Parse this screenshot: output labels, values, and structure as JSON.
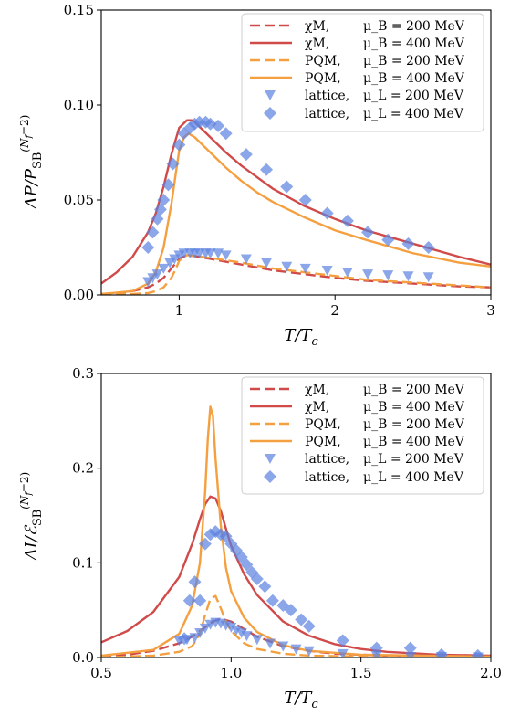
{
  "colors": {
    "chiM": "#d04a4a",
    "PQM": "#f5a040",
    "lattice": "#5b82e0"
  },
  "chart_data": [
    {
      "type": "line",
      "ylabel": "ΔP/P_SB^(N_f=2)",
      "xlabel": "T/T_c",
      "xlim": [
        0.5,
        3.0
      ],
      "ylim": [
        0.0,
        0.15
      ],
      "xticks": [
        "1",
        "2",
        "3"
      ],
      "xtick_values": [
        1,
        2,
        3
      ],
      "yticks": [
        "0.00",
        "0.05",
        "0.10",
        "0.15"
      ],
      "ytick_values": [
        0.0,
        0.05,
        0.1,
        0.15
      ],
      "legend_position": "top-right",
      "legend": [
        {
          "model": "χM,",
          "mu": "μ_B = 200 MeV"
        },
        {
          "model": "χM,",
          "mu": "μ_B = 400 MeV"
        },
        {
          "model": "PQM,",
          "mu": "μ_B = 200 MeV"
        },
        {
          "model": "PQM,",
          "mu": "μ_B = 400 MeV"
        },
        {
          "model": "lattice,",
          "mu": "μ_L = 200 MeV"
        },
        {
          "model": "lattice,",
          "mu": "μ_L = 400 MeV"
        }
      ],
      "series": [
        {
          "name": "χM, μ_B = 200 MeV",
          "style": "dashed",
          "color": "chiM",
          "x": [
            0.5,
            0.6,
            0.7,
            0.8,
            0.85,
            0.9,
            0.95,
            1.0,
            1.05,
            1.1,
            1.2,
            1.4,
            1.6,
            1.8,
            2.0,
            2.2,
            2.5,
            2.8,
            3.0
          ],
          "y": [
            0.0005,
            0.001,
            0.002,
            0.004,
            0.006,
            0.009,
            0.014,
            0.019,
            0.021,
            0.0205,
            0.019,
            0.016,
            0.013,
            0.011,
            0.009,
            0.0075,
            0.006,
            0.0045,
            0.004
          ]
        },
        {
          "name": "χM, μ_B = 400 MeV",
          "style": "solid",
          "color": "chiM",
          "x": [
            0.5,
            0.6,
            0.7,
            0.8,
            0.85,
            0.9,
            0.95,
            1.0,
            1.05,
            1.08,
            1.1,
            1.15,
            1.2,
            1.3,
            1.4,
            1.5,
            1.6,
            1.8,
            2.0,
            2.2,
            2.5,
            2.8,
            3.0
          ],
          "y": [
            0.006,
            0.012,
            0.02,
            0.033,
            0.043,
            0.057,
            0.074,
            0.088,
            0.092,
            0.092,
            0.091,
            0.087,
            0.083,
            0.075,
            0.068,
            0.062,
            0.056,
            0.047,
            0.04,
            0.034,
            0.027,
            0.02,
            0.016
          ]
        },
        {
          "name": "PQM, μ_B = 200 MeV",
          "style": "dashed",
          "color": "PQM",
          "x": [
            0.5,
            0.7,
            0.8,
            0.85,
            0.9,
            0.95,
            0.98,
            1.0,
            1.05,
            1.1,
            1.2,
            1.4,
            1.6,
            1.8,
            2.0,
            2.2,
            2.5,
            2.8,
            3.0
          ],
          "y": [
            0.0,
            0.0005,
            0.001,
            0.002,
            0.004,
            0.009,
            0.014,
            0.018,
            0.021,
            0.0205,
            0.0195,
            0.017,
            0.014,
            0.012,
            0.01,
            0.008,
            0.0065,
            0.005,
            0.004
          ]
        },
        {
          "name": "PQM, μ_B = 400 MeV",
          "style": "solid",
          "color": "PQM",
          "x": [
            0.5,
            0.7,
            0.8,
            0.85,
            0.9,
            0.95,
            0.98,
            1.0,
            1.03,
            1.06,
            1.1,
            1.2,
            1.3,
            1.4,
            1.5,
            1.6,
            1.8,
            2.0,
            2.2,
            2.5,
            2.8,
            3.0
          ],
          "y": [
            0.0005,
            0.002,
            0.006,
            0.012,
            0.025,
            0.048,
            0.065,
            0.076,
            0.083,
            0.085,
            0.083,
            0.075,
            0.067,
            0.06,
            0.054,
            0.049,
            0.041,
            0.034,
            0.029,
            0.022,
            0.017,
            0.015
          ]
        },
        {
          "name": "lattice, μ_L = 200 MeV",
          "style": "marker-triangle",
          "color": "lattice",
          "x": [
            0.8,
            0.83,
            0.86,
            0.9,
            0.94,
            0.97,
            1.0,
            1.03,
            1.07,
            1.1,
            1.13,
            1.17,
            1.2,
            1.25,
            1.3,
            1.43,
            1.56,
            1.69,
            1.81,
            1.95,
            2.08,
            2.21,
            2.34,
            2.47,
            2.6
          ],
          "y": [
            0.007,
            0.009,
            0.011,
            0.014,
            0.017,
            0.019,
            0.021,
            0.022,
            0.022,
            0.022,
            0.022,
            0.022,
            0.022,
            0.022,
            0.021,
            0.019,
            0.017,
            0.015,
            0.014,
            0.013,
            0.012,
            0.011,
            0.0105,
            0.01,
            0.0095
          ]
        },
        {
          "name": "lattice, μ_L = 400 MeV",
          "style": "marker-diamond",
          "color": "lattice",
          "x": [
            0.8,
            0.83,
            0.86,
            0.88,
            0.9,
            0.93,
            0.96,
            1.0,
            1.03,
            1.07,
            1.1,
            1.13,
            1.17,
            1.2,
            1.25,
            1.3,
            1.43,
            1.56,
            1.69,
            1.81,
            1.95,
            2.08,
            2.21,
            2.34,
            2.47,
            2.6
          ],
          "y": [
            0.025,
            0.033,
            0.04,
            0.045,
            0.05,
            0.058,
            0.069,
            0.079,
            0.085,
            0.088,
            0.09,
            0.091,
            0.091,
            0.09,
            0.089,
            0.085,
            0.074,
            0.066,
            0.057,
            0.05,
            0.043,
            0.039,
            0.033,
            0.029,
            0.027,
            0.025
          ]
        }
      ]
    },
    {
      "type": "line",
      "ylabel": "ΔI/ℰ_SB^(N_f=2)",
      "xlabel": "T/T_c",
      "xlim": [
        0.5,
        2.0
      ],
      "ylim": [
        0.0,
        0.3
      ],
      "xticks": [
        "0.5",
        "1.0",
        "1.5",
        "2.0"
      ],
      "xtick_values": [
        0.5,
        1.0,
        1.5,
        2.0
      ],
      "yticks": [
        "0.0",
        "0.1",
        "0.2",
        "0.3"
      ],
      "ytick_values": [
        0.0,
        0.1,
        0.2,
        0.3
      ],
      "legend_position": "top-right",
      "legend": [
        {
          "model": "χM,",
          "mu": "μ_B = 200 MeV"
        },
        {
          "model": "χM,",
          "mu": "μ_B = 400 MeV"
        },
        {
          "model": "PQM,",
          "mu": "μ_B = 200 MeV"
        },
        {
          "model": "PQM,",
          "mu": "μ_B = 400 MeV"
        },
        {
          "model": "lattice,",
          "mu": "μ_L = 200 MeV"
        },
        {
          "model": "lattice,",
          "mu": "μ_L = 400 MeV"
        }
      ],
      "series": [
        {
          "name": "χM, μ_B = 200 MeV",
          "style": "dashed",
          "color": "chiM",
          "x": [
            0.5,
            0.6,
            0.7,
            0.8,
            0.85,
            0.9,
            0.93,
            0.96,
            1.0,
            1.05,
            1.1,
            1.2,
            1.3,
            1.4,
            1.6,
            1.8,
            2.0
          ],
          "y": [
            0.001,
            0.003,
            0.007,
            0.015,
            0.022,
            0.032,
            0.038,
            0.041,
            0.038,
            0.03,
            0.022,
            0.012,
            0.007,
            0.004,
            0.002,
            0.001,
            0.0005
          ]
        },
        {
          "name": "χM, μ_B = 400 MeV",
          "style": "solid",
          "color": "chiM",
          "x": [
            0.5,
            0.6,
            0.7,
            0.8,
            0.85,
            0.88,
            0.9,
            0.92,
            0.94,
            0.96,
            0.98,
            1.0,
            1.05,
            1.1,
            1.2,
            1.3,
            1.4,
            1.5,
            1.6,
            1.8,
            2.0
          ],
          "y": [
            0.016,
            0.028,
            0.048,
            0.085,
            0.12,
            0.146,
            0.162,
            0.17,
            0.168,
            0.155,
            0.136,
            0.118,
            0.088,
            0.066,
            0.038,
            0.023,
            0.014,
            0.009,
            0.006,
            0.003,
            0.002
          ]
        },
        {
          "name": "PQM, μ_B = 200 MeV",
          "style": "dashed",
          "color": "PQM",
          "x": [
            0.5,
            0.7,
            0.8,
            0.85,
            0.88,
            0.9,
            0.92,
            0.94,
            0.96,
            0.98,
            1.0,
            1.05,
            1.1,
            1.2,
            1.3,
            1.5,
            2.0
          ],
          "y": [
            0.0,
            0.002,
            0.006,
            0.012,
            0.025,
            0.045,
            0.062,
            0.065,
            0.052,
            0.038,
            0.028,
            0.015,
            0.009,
            0.004,
            0.002,
            0.001,
            0.0
          ]
        },
        {
          "name": "PQM, μ_B = 400 MeV",
          "style": "solid",
          "color": "PQM",
          "x": [
            0.5,
            0.7,
            0.8,
            0.85,
            0.88,
            0.9,
            0.91,
            0.92,
            0.93,
            0.94,
            0.96,
            0.98,
            1.0,
            1.05,
            1.1,
            1.2,
            1.3,
            1.5,
            2.0
          ],
          "y": [
            0.002,
            0.008,
            0.025,
            0.055,
            0.1,
            0.175,
            0.23,
            0.265,
            0.255,
            0.21,
            0.14,
            0.095,
            0.07,
            0.042,
            0.027,
            0.013,
            0.007,
            0.003,
            0.001
          ]
        },
        {
          "name": "lattice, μ_L = 200 MeV",
          "style": "marker-triangle",
          "color": "lattice",
          "x": [
            0.8,
            0.83,
            0.86,
            0.88,
            0.9,
            0.92,
            0.94,
            0.96,
            0.98,
            1.0,
            1.02,
            1.04,
            1.06,
            1.1,
            1.15,
            1.2,
            1.25,
            1.3,
            1.43,
            1.56,
            1.69,
            1.81,
            1.95
          ],
          "y": [
            0.018,
            0.019,
            0.021,
            0.026,
            0.031,
            0.035,
            0.037,
            0.036,
            0.034,
            0.032,
            0.029,
            0.026,
            0.023,
            0.019,
            0.015,
            0.012,
            0.009,
            0.007,
            0.004,
            0.002,
            0.001,
            0.001,
            0.0005
          ]
        },
        {
          "name": "lattice, μ_L = 400 MeV",
          "style": "marker-diamond",
          "color": "lattice",
          "x": [
            0.82,
            0.84,
            0.86,
            0.88,
            0.9,
            0.92,
            0.94,
            0.96,
            0.98,
            1.0,
            1.02,
            1.04,
            1.06,
            1.08,
            1.1,
            1.13,
            1.16,
            1.2,
            1.23,
            1.27,
            1.3,
            1.43,
            1.56,
            1.69,
            1.81,
            1.95
          ],
          "y": [
            0.02,
            0.06,
            0.08,
            0.06,
            0.12,
            0.13,
            0.133,
            0.13,
            0.128,
            0.12,
            0.113,
            0.106,
            0.098,
            0.09,
            0.083,
            0.075,
            0.06,
            0.055,
            0.05,
            0.04,
            0.033,
            0.018,
            0.01,
            0.01,
            0.003,
            0.002
          ]
        }
      ]
    }
  ]
}
